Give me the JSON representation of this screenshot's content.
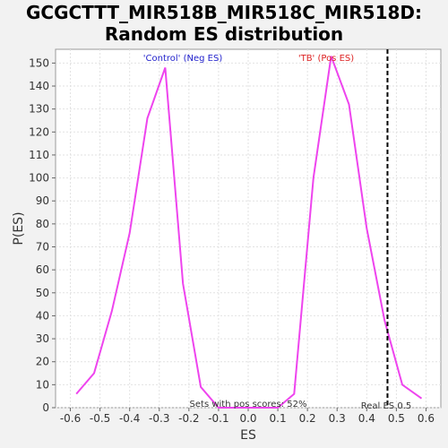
{
  "chart_data": {
    "type": "line",
    "title_line1": "GCGCTTT_MIR518B_MIR518C_MIR518D:",
    "title_line2": "Random ES distribution",
    "xlabel": "ES",
    "ylabel": "P(ES)",
    "xlim": [
      -0.65,
      0.65
    ],
    "ylim": [
      0,
      156
    ],
    "xticks": [
      -0.6,
      -0.5,
      -0.4,
      -0.3,
      -0.2,
      -0.1,
      0.0,
      0.1,
      0.2,
      0.3,
      0.4,
      0.5,
      0.6
    ],
    "xtick_labels": [
      "-0.6",
      "-0.5",
      "-0.4",
      "-0.3",
      "-0.2",
      "-0.1",
      "0.0",
      "0.1",
      "0.2",
      "0.3",
      "0.4",
      "0.5",
      "0.6"
    ],
    "yticks": [
      0,
      10,
      20,
      30,
      40,
      50,
      60,
      70,
      80,
      90,
      100,
      110,
      120,
      130,
      140,
      150
    ],
    "grid": true,
    "series": [
      {
        "color": "#ee44ee",
        "points": [
          [
            -0.58,
            6
          ],
          [
            -0.52,
            15
          ],
          [
            -0.46,
            42
          ],
          [
            -0.4,
            76
          ],
          [
            -0.34,
            126
          ],
          [
            -0.28,
            148
          ],
          [
            -0.22,
            54
          ],
          [
            -0.16,
            9
          ],
          [
            -0.1,
            0
          ],
          [
            0.0,
            0
          ],
          [
            0.1,
            0
          ],
          [
            0.155,
            6
          ],
          [
            0.22,
            100
          ],
          [
            0.28,
            153
          ],
          [
            0.34,
            132
          ],
          [
            0.4,
            78
          ],
          [
            0.46,
            38
          ],
          [
            0.52,
            10
          ],
          [
            0.585,
            4
          ]
        ]
      }
    ],
    "real_es": 0.47,
    "annotations": {
      "left": "'Control' (Neg ES)",
      "right": "'TB' (Pos ES)",
      "bottom_center": "Sets with pos scores: 52%",
      "real_es": "Real ES 0.5"
    },
    "colors": {
      "left_label": "#2222cc",
      "right_label": "#dd2222",
      "line": "#ee44ee",
      "real_es_line": "#000000"
    }
  }
}
